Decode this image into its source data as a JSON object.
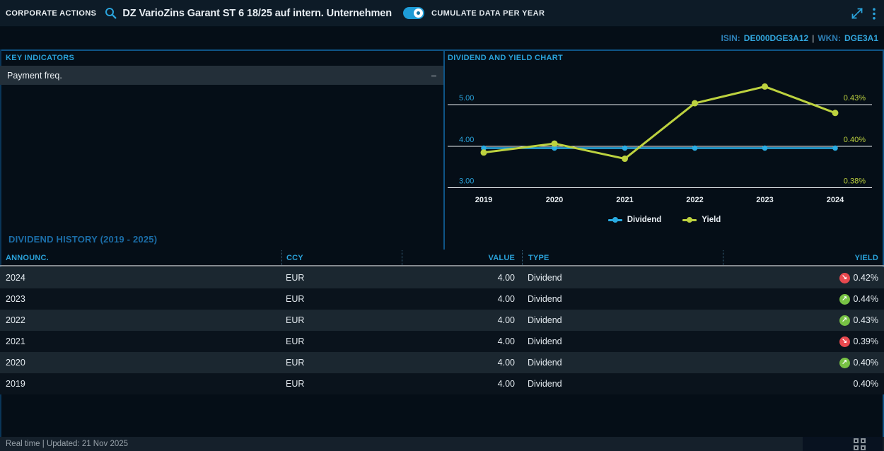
{
  "topbar": {
    "app_label": "CORPORATE ACTIONS",
    "instrument_title": "DZ VarioZins Garant ST 6 18/25 auf intern. Unternehmen",
    "toggle_label": "CUMULATE DATA PER YEAR",
    "toggle_state": "on"
  },
  "identifiers": {
    "isin_label": "ISIN:",
    "isin": "DE000DGE3A12",
    "separator": "|",
    "wkn_label": "WKN:",
    "wkn": "DGE3A1"
  },
  "key_indicators": {
    "title": "KEY INDICATORS",
    "rows": [
      {
        "label": "Payment freq.",
        "value": "–"
      }
    ]
  },
  "chart": {
    "title": "DIVIDEND AND YIELD CHART"
  },
  "chart_data": {
    "type": "line",
    "title": "DIVIDEND AND YIELD CHART",
    "x": [
      2019,
      2020,
      2021,
      2022,
      2023,
      2024
    ],
    "series": [
      {
        "name": "Dividend",
        "axis": "left",
        "color": "#29abe2",
        "values": [
          4.0,
          4.0,
          4.0,
          4.0,
          4.0,
          4.0
        ]
      },
      {
        "name": "Yield",
        "axis": "right",
        "color": "#bdd23f",
        "values": [
          0.397,
          0.402,
          0.394,
          0.431,
          0.443,
          0.424
        ]
      }
    ],
    "left_axis": {
      "ticks": [
        3,
        4,
        5
      ],
      "labels": [
        "3.00",
        "4.00",
        "5.00"
      ]
    },
    "right_axis": {
      "ticks": [
        0.38,
        0.4,
        0.43
      ],
      "labels": [
        "0.38%",
        "0.40%",
        "0.43%"
      ]
    },
    "legend": [
      "Dividend",
      "Yield"
    ],
    "legend_position": "bottom-center",
    "grid": true
  },
  "history": {
    "title": "DIVIDEND HISTORY (2019 - 2025)",
    "columns": [
      "ANNOUNC.",
      "CCY",
      "VALUE",
      "TYPE",
      "YIELD"
    ],
    "rows": [
      {
        "announc": "2024",
        "ccy": "EUR",
        "value": "4.00",
        "type": "Dividend",
        "yield": "0.42%",
        "trend": "down"
      },
      {
        "announc": "2023",
        "ccy": "EUR",
        "value": "4.00",
        "type": "Dividend",
        "yield": "0.44%",
        "trend": "up"
      },
      {
        "announc": "2022",
        "ccy": "EUR",
        "value": "4.00",
        "type": "Dividend",
        "yield": "0.43%",
        "trend": "up"
      },
      {
        "announc": "2021",
        "ccy": "EUR",
        "value": "4.00",
        "type": "Dividend",
        "yield": "0.39%",
        "trend": "down"
      },
      {
        "announc": "2020",
        "ccy": "EUR",
        "value": "4.00",
        "type": "Dividend",
        "yield": "0.40%",
        "trend": "up"
      },
      {
        "announc": "2019",
        "ccy": "EUR",
        "value": "4.00",
        "type": "Dividend",
        "yield": "0.40%",
        "trend": "none"
      }
    ]
  },
  "footer": {
    "status": "Real time | Updated: 21 Nov 2025"
  },
  "colors": {
    "accent_cyan": "#2aa3db",
    "dividend_line": "#29abe2",
    "yield_line": "#bdd23f",
    "trend_up": "#77c244",
    "trend_down": "#e8494f",
    "section_heading_blue": "#1b6da7",
    "row_light": "#1b2730",
    "row_dark": "#0a131c"
  }
}
